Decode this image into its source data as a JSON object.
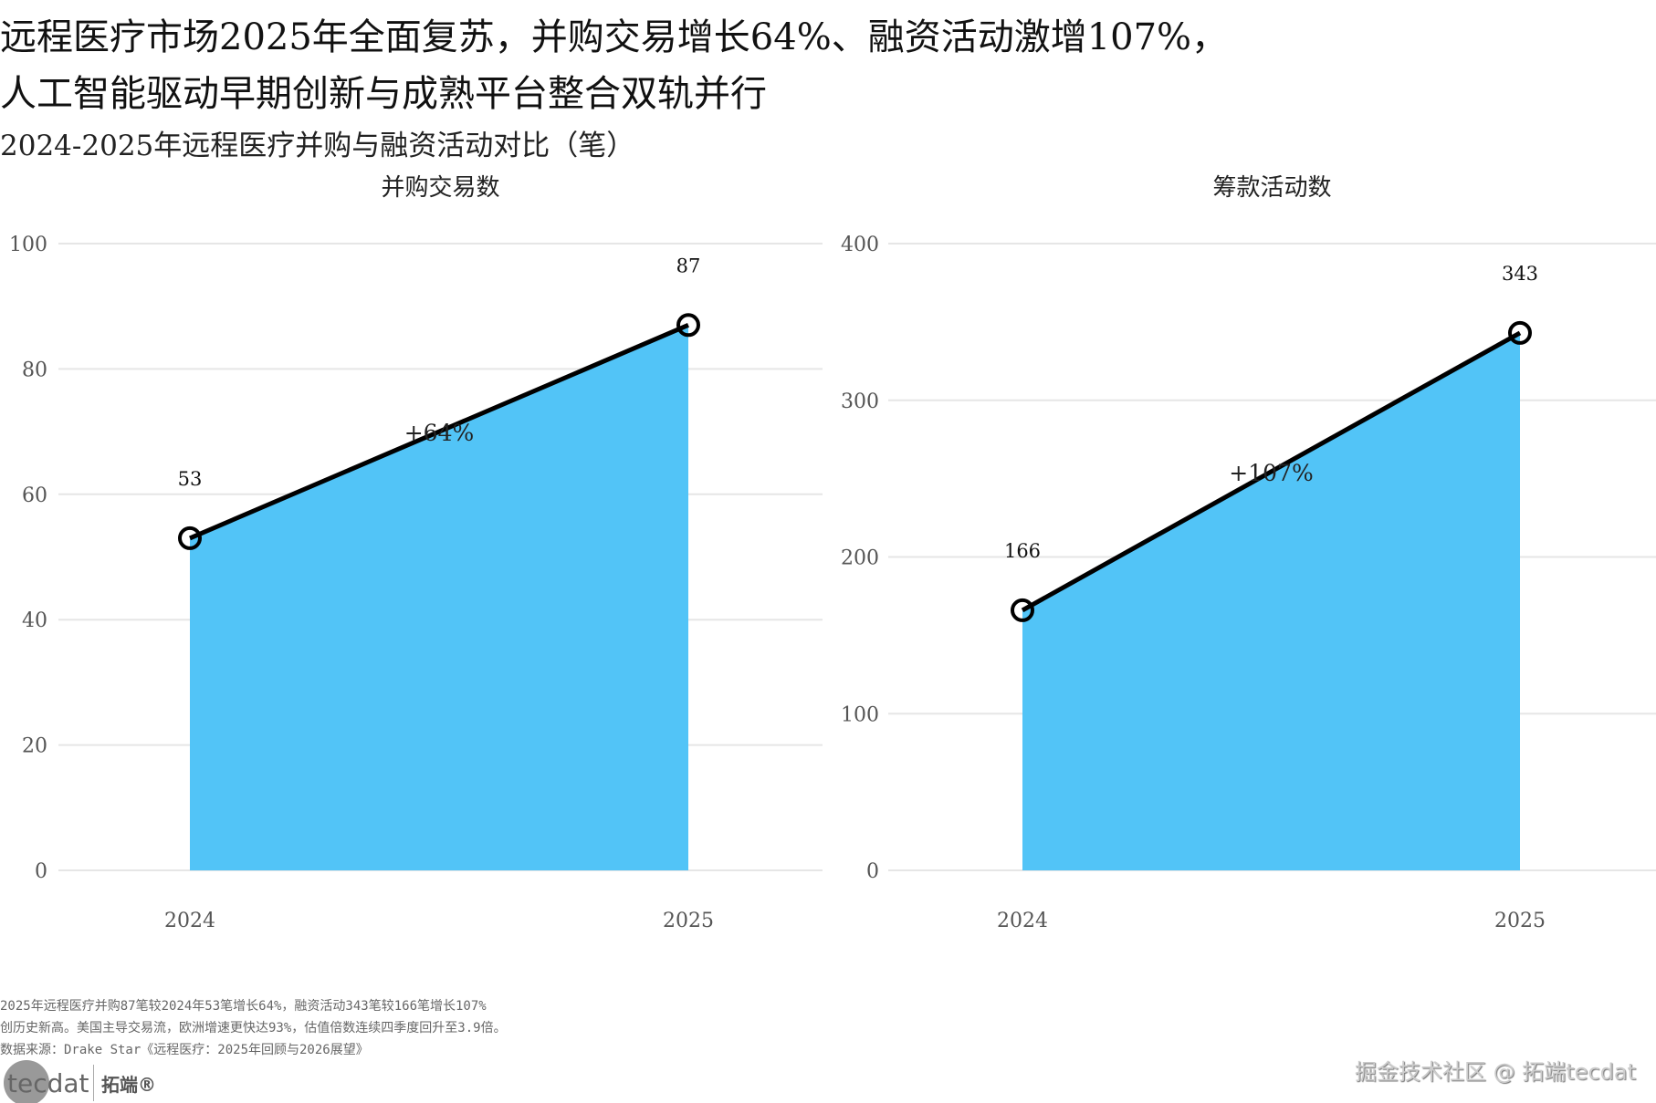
{
  "title_lines": [
    "远程医疗市场2025年全面复苏，并购交易增长64%、融资活动激增107%，",
    "人工智能驱动早期创新与成熟平台整合双轨并行"
  ],
  "subtitle": "2024-2025年远程医疗并购与融资活动对比（笔）",
  "chart_data": [
    {
      "type": "area",
      "title": "并购交易数",
      "categories": [
        "2024",
        "2025"
      ],
      "values": [
        53,
        87
      ],
      "ylim": [
        0,
        100
      ],
      "yticks": [
        0,
        20,
        40,
        60,
        80,
        100
      ],
      "annotation": "+64%",
      "color": "#4FC3F7",
      "grid": true
    },
    {
      "type": "area",
      "title": "筹款活动数",
      "categories": [
        "2024",
        "2025"
      ],
      "values": [
        166,
        343
      ],
      "ylim": [
        0,
        400
      ],
      "yticks": [
        0,
        100,
        200,
        300,
        400
      ],
      "annotation": "+107%",
      "color": "#4FC3F7",
      "grid": true
    }
  ],
  "footnotes": [
    "2025年远程医疗并购87笔较2024年53笔增长64%，融资活动343笔较166笔增长107%",
    "创历史新高。美国主导交易流，欧洲增速更快达93%，估值倍数连续四季度回升至3.9倍。",
    "数据来源：Drake Star《远程医疗：2025年回顾与2026展望》"
  ],
  "logo": {
    "text": "tecdat",
    "brand": "拓端®"
  },
  "watermark": "掘金技术社区 @ 拓端tecdat"
}
